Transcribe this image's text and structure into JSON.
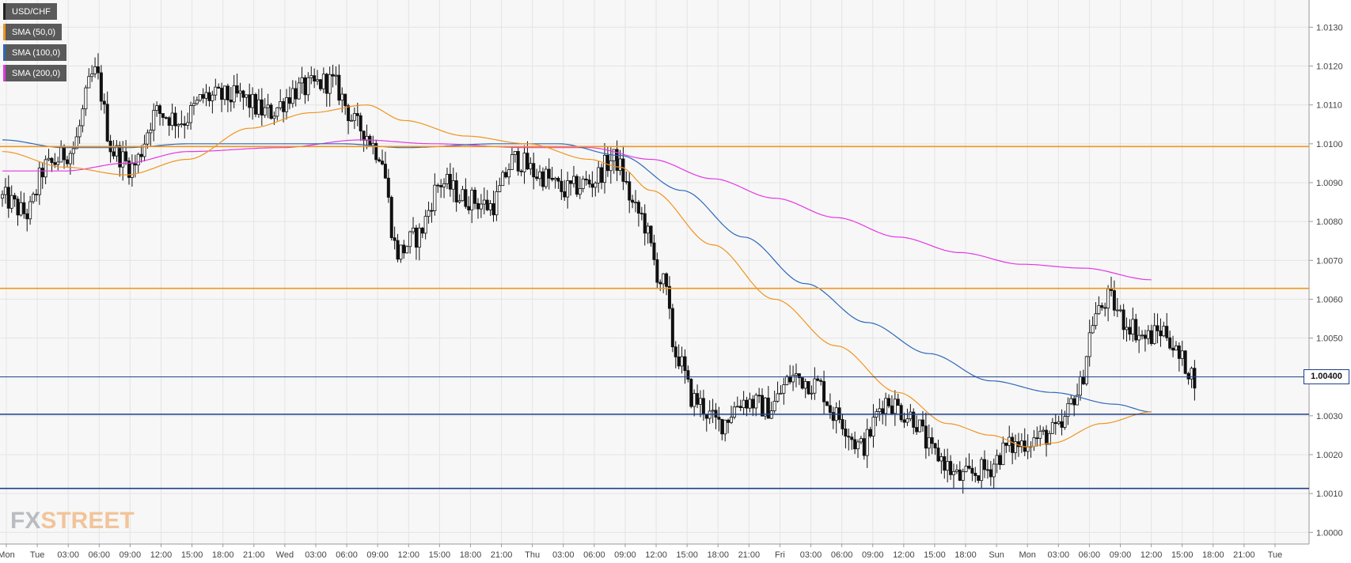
{
  "legend": [
    {
      "label": "USD/CHF",
      "color": "#222222"
    },
    {
      "label": "SMA (50,0)",
      "color": "#f0951e"
    },
    {
      "label": "SMA (100,0)",
      "color": "#2e68b8"
    },
    {
      "label": "SMA (200,0)",
      "color": "#e437e4"
    }
  ],
  "logo": {
    "part1": "FX",
    "part2": "STREET"
  },
  "current_price_label": "1.00400",
  "chart_data": {
    "type": "candlestick",
    "title": "",
    "xlabel": "",
    "ylabel": "",
    "ylim": [
      0.9997,
      1.0137
    ],
    "grid": true,
    "legend_position": "top-left",
    "y_ticks": [
      "1.0000",
      "1.0010",
      "1.0020",
      "1.0030",
      "1.0040",
      "1.0050",
      "1.0060",
      "1.0070",
      "1.0080",
      "1.0090",
      "1.0100",
      "1.0110",
      "1.0120",
      "1.0130"
    ],
    "x_ticks": [
      "Mon",
      "Tue",
      "03:00",
      "06:00",
      "09:00",
      "12:00",
      "15:00",
      "18:00",
      "21:00",
      "Wed",
      "03:00",
      "06:00",
      "09:00",
      "12:00",
      "15:00",
      "18:00",
      "21:00",
      "Thu",
      "03:00",
      "06:00",
      "09:00",
      "12:00",
      "15:00",
      "18:00",
      "21:00",
      "Fri",
      "03:00",
      "06:00",
      "09:00",
      "12:00",
      "15:00",
      "18:00",
      "Sun",
      "Mon",
      "03:00",
      "06:00",
      "09:00",
      "12:00",
      "15:00",
      "18:00",
      "21:00",
      "Tue"
    ],
    "horizontal_levels": [
      {
        "value": 1.00993,
        "color": "#f0951e"
      },
      {
        "value": 1.00628,
        "color": "#f0951e"
      },
      {
        "value": 1.004,
        "color": "#1f3f8a"
      },
      {
        "value": 1.00304,
        "color": "#1f3f8a"
      },
      {
        "value": 1.00113,
        "color": "#1f3f8a"
      }
    ],
    "current_price": 1.004,
    "series_anchors": {
      "price": [
        [
          0,
          1.0086
        ],
        [
          8,
          1.0082
        ],
        [
          14,
          1.0094
        ],
        [
          22,
          1.0098
        ],
        [
          30,
          1.0118
        ],
        [
          36,
          1.0098
        ],
        [
          42,
          1.0094
        ],
        [
          50,
          1.0108
        ],
        [
          58,
          1.0106
        ],
        [
          66,
          1.0112
        ],
        [
          76,
          1.0112
        ],
        [
          86,
          1.0108
        ],
        [
          96,
          1.0114
        ],
        [
          106,
          1.0116
        ],
        [
          116,
          1.0104
        ],
        [
          122,
          1.0098
        ],
        [
          128,
          1.0072
        ],
        [
          134,
          1.0076
        ],
        [
          142,
          1.009
        ],
        [
          150,
          1.0086
        ],
        [
          158,
          1.0084
        ],
        [
          166,
          1.0096
        ],
        [
          174,
          1.0092
        ],
        [
          182,
          1.0088
        ],
        [
          190,
          1.009
        ],
        [
          198,
          1.0096
        ],
        [
          206,
          1.0082
        ],
        [
          214,
          1.0064
        ],
        [
          218,
          1.0046
        ],
        [
          224,
          1.0034
        ],
        [
          232,
          1.0028
        ],
        [
          240,
          1.0034
        ],
        [
          248,
          1.0032
        ],
        [
          256,
          1.004
        ],
        [
          264,
          1.0038
        ],
        [
          270,
          1.003
        ],
        [
          278,
          1.0022
        ],
        [
          286,
          1.0034
        ],
        [
          294,
          1.003
        ],
        [
          302,
          1.002
        ],
        [
          310,
          1.0014
        ],
        [
          318,
          1.0016
        ],
        [
          326,
          1.0022
        ],
        [
          334,
          1.0024
        ],
        [
          342,
          1.0026
        ],
        [
          348,
          1.0036
        ],
        [
          354,
          1.0056
        ],
        [
          358,
          1.006
        ],
        [
          364,
          1.0054
        ],
        [
          370,
          1.005
        ],
        [
          376,
          1.0052
        ],
        [
          382,
          1.0044
        ],
        [
          386,
          1.004
        ]
      ],
      "sma50": [
        [
          0,
          1.0098
        ],
        [
          20,
          1.0094
        ],
        [
          40,
          1.0092
        ],
        [
          60,
          1.0096
        ],
        [
          80,
          1.0104
        ],
        [
          100,
          1.0108
        ],
        [
          118,
          1.011
        ],
        [
          130,
          1.0106
        ],
        [
          150,
          1.0102
        ],
        [
          170,
          1.01
        ],
        [
          190,
          1.0096
        ],
        [
          200,
          1.0094
        ],
        [
          210,
          1.0088
        ],
        [
          230,
          1.0074
        ],
        [
          250,
          1.006
        ],
        [
          270,
          1.0048
        ],
        [
          290,
          1.0036
        ],
        [
          306,
          1.0028
        ],
        [
          320,
          1.0025
        ],
        [
          332,
          1.0022
        ],
        [
          340,
          1.0023
        ],
        [
          356,
          1.0028
        ],
        [
          372,
          1.0031
        ]
      ],
      "sma100": [
        [
          0,
          1.0101
        ],
        [
          20,
          1.0099
        ],
        [
          40,
          1.0099
        ],
        [
          60,
          1.01
        ],
        [
          90,
          1.01
        ],
        [
          110,
          1.01
        ],
        [
          130,
          1.0099
        ],
        [
          160,
          1.01
        ],
        [
          180,
          1.01
        ],
        [
          200,
          1.0097
        ],
        [
          220,
          1.0088
        ],
        [
          240,
          1.0076
        ],
        [
          260,
          1.0064
        ],
        [
          280,
          1.0054
        ],
        [
          300,
          1.0046
        ],
        [
          320,
          1.0039
        ],
        [
          340,
          1.0036
        ],
        [
          360,
          1.0033
        ],
        [
          372,
          1.0031
        ]
      ],
      "sma200": [
        [
          0,
          1.0093
        ],
        [
          20,
          1.0093
        ],
        [
          40,
          1.0095
        ],
        [
          60,
          1.0098
        ],
        [
          90,
          1.0099
        ],
        [
          116,
          1.0101
        ],
        [
          140,
          1.01
        ],
        [
          170,
          1.0099
        ],
        [
          190,
          1.0099
        ],
        [
          210,
          1.0096
        ],
        [
          230,
          1.0091
        ],
        [
          250,
          1.0086
        ],
        [
          270,
          1.0081
        ],
        [
          290,
          1.0076
        ],
        [
          310,
          1.0072
        ],
        [
          330,
          1.0069
        ],
        [
          350,
          1.0068
        ],
        [
          372,
          1.0065
        ]
      ]
    }
  }
}
